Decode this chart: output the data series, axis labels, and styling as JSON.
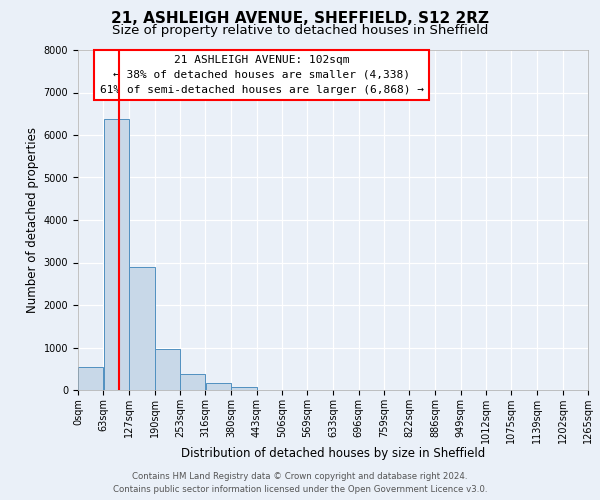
{
  "title": "21, ASHLEIGH AVENUE, SHEFFIELD, S12 2RZ",
  "subtitle": "Size of property relative to detached houses in Sheffield",
  "xlabel": "Distribution of detached houses by size in Sheffield",
  "ylabel": "Number of detached properties",
  "bin_edges": [
    0,
    63,
    127,
    190,
    253,
    316,
    380,
    443,
    506,
    569,
    633,
    696,
    759,
    822,
    886,
    949,
    1012,
    1075,
    1139,
    1202,
    1265
  ],
  "bin_labels": [
    "0sqm",
    "63sqm",
    "127sqm",
    "190sqm",
    "253sqm",
    "316sqm",
    "380sqm",
    "443sqm",
    "506sqm",
    "569sqm",
    "633sqm",
    "696sqm",
    "759sqm",
    "822sqm",
    "886sqm",
    "949sqm",
    "1012sqm",
    "1075sqm",
    "1139sqm",
    "1202sqm",
    "1265sqm"
  ],
  "bar_heights": [
    550,
    6380,
    2900,
    970,
    380,
    170,
    80,
    0,
    0,
    0,
    0,
    0,
    0,
    0,
    0,
    0,
    0,
    0,
    0,
    0
  ],
  "bar_color": "#c8d8e8",
  "bar_edge_color": "#5090c0",
  "property_line_x": 102,
  "property_line_color": "red",
  "annotation_line1": "21 ASHLEIGH AVENUE: 102sqm",
  "annotation_line2": "← 38% of detached houses are smaller (4,338)",
  "annotation_line3": "61% of semi-detached houses are larger (6,868) →",
  "annotation_box_color": "white",
  "annotation_box_edge_color": "red",
  "ylim": [
    0,
    8000
  ],
  "yticks": [
    0,
    1000,
    2000,
    3000,
    4000,
    5000,
    6000,
    7000,
    8000
  ],
  "background_color": "#eaf0f8",
  "footer_line1": "Contains HM Land Registry data © Crown copyright and database right 2024.",
  "footer_line2": "Contains public sector information licensed under the Open Government Licence v3.0.",
  "title_fontsize": 11,
  "subtitle_fontsize": 9.5,
  "label_fontsize": 8.5,
  "tick_fontsize": 7,
  "annotation_fontsize": 8,
  "footer_fontsize": 6.2
}
